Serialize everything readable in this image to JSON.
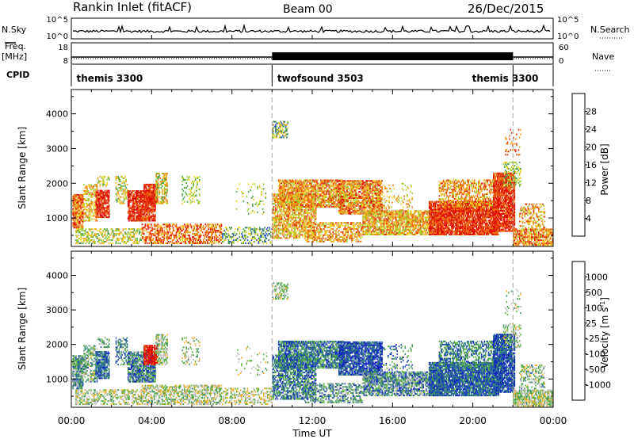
{
  "header": {
    "station": "Rankin Inlet (fitACF)",
    "beam": "Beam 00",
    "date": "26/Dec/2015"
  },
  "status_panel": {
    "left_label_top": "N.Sky",
    "left_label_freq_1": "Freq.",
    "left_label_freq_2": "[MHz]",
    "left_label_cpid": "CPID",
    "right_label_top": "N.Search",
    "right_label_nave": "Nave",
    "nsky_ticks": [
      "10^5",
      "10^0"
    ],
    "nsearch_ticks": [
      "10^5",
      "10^0"
    ],
    "freq_ticks": [
      "18",
      "8"
    ],
    "nave_ticks": [
      "60",
      "0"
    ],
    "cpid_segments": [
      {
        "label": "themis 3300",
        "start_hour": 0,
        "end_hour": 10
      },
      {
        "label": "twofsound 3503",
        "start_hour": 10,
        "end_hour": 22
      },
      {
        "label": "themis 3300",
        "start_hour": 22,
        "end_hour": 24
      }
    ],
    "cpid_label_positions_hour": [
      0.1,
      10.1,
      19.8
    ]
  },
  "chart_data": [
    {
      "type": "heatmap",
      "name": "power-panel",
      "ylabel": "Slant Range [km]",
      "xlabel": "",
      "xlim": [
        0,
        24
      ],
      "ylim": [
        180,
        4700
      ],
      "yticks": [
        1000,
        2000,
        3000,
        4000
      ],
      "colorbar": {
        "label": "Power [dB]",
        "ticks": [
          "4",
          "8",
          "12",
          "16",
          "20",
          "24",
          "28"
        ],
        "colors": [
          "#1010e0",
          "#2a4fd0",
          "#3a7a6a",
          "#4aa04a",
          "#9acc30",
          "#f0d020",
          "#f0a020",
          "#f07010",
          "#e03010",
          "#e00000"
        ]
      },
      "dashed_lines_hour": [
        10,
        22
      ]
    },
    {
      "type": "heatmap",
      "name": "velocity-panel",
      "ylabel": "Slant Range [km]",
      "xlabel": "Time UT",
      "xlim": [
        0,
        24
      ],
      "ylim": [
        180,
        4700
      ],
      "yticks": [
        1000,
        2000,
        3000,
        4000
      ],
      "xticks": [
        "00:00",
        "04:00",
        "08:00",
        "12:00",
        "16:00",
        "20:00",
        "00:00"
      ],
      "colorbar": {
        "label": "Velocity [m s-1]",
        "ticks": [
          "1000",
          "500",
          "100",
          "25",
          "-25",
          "-100",
          "-500",
          "-1000"
        ],
        "colors": [
          "#1020c0",
          "#2050b0",
          "#3a8a70",
          "#5ab040",
          "#c0c0c0",
          "#f0b020",
          "#f08020",
          "#f05010",
          "#e00000"
        ]
      },
      "dashed_lines_hour": [
        10,
        22
      ]
    }
  ],
  "regions": [
    {
      "t0": 0.05,
      "t1": 0.6,
      "r0": 700,
      "r1": 1700,
      "density": 0.85,
      "p": [
        0.55,
        0.95
      ],
      "v": [
        0.15,
        0.55
      ]
    },
    {
      "t0": 0.6,
      "t1": 1.3,
      "r0": 900,
      "r1": 2000,
      "density": 0.5,
      "p": [
        0.4,
        0.8
      ],
      "v": [
        0.2,
        0.6
      ]
    },
    {
      "t0": 1.2,
      "t1": 1.9,
      "r0": 1000,
      "r1": 1800,
      "density": 0.8,
      "p": [
        0.75,
        1.0
      ],
      "v": [
        0.05,
        0.35
      ]
    },
    {
      "t0": 1.3,
      "t1": 1.9,
      "r0": 1900,
      "r1": 2200,
      "density": 0.4,
      "p": [
        0.3,
        0.7
      ],
      "v": [
        0.2,
        0.5
      ]
    },
    {
      "t0": 2.2,
      "t1": 2.8,
      "r0": 1400,
      "r1": 2200,
      "density": 0.45,
      "p": [
        0.3,
        0.7
      ],
      "v": [
        0.1,
        0.4
      ]
    },
    {
      "t0": 2.8,
      "t1": 4.2,
      "r0": 900,
      "r1": 1800,
      "density": 0.85,
      "p": [
        0.7,
        1.0
      ],
      "v": [
        0.05,
        0.5
      ]
    },
    {
      "t0": 3.6,
      "t1": 4.3,
      "r0": 1400,
      "r1": 2000,
      "density": 0.9,
      "p": [
        0.7,
        1.0
      ],
      "v": [
        0.85,
        1.0
      ]
    },
    {
      "t0": 4.2,
      "t1": 4.8,
      "r0": 1400,
      "r1": 2300,
      "density": 0.6,
      "p": [
        0.3,
        0.8
      ],
      "v": [
        0.3,
        0.6
      ]
    },
    {
      "t0": 0.2,
      "t1": 3.5,
      "r0": 250,
      "r1": 700,
      "density": 0.45,
      "p": [
        0.3,
        0.7
      ],
      "v": [
        0.3,
        0.65
      ]
    },
    {
      "t0": 3.5,
      "t1": 7.5,
      "r0": 250,
      "r1": 850,
      "density": 0.55,
      "p": [
        0.55,
        0.95
      ],
      "v": [
        0.3,
        0.65
      ]
    },
    {
      "t0": 5.5,
      "t1": 6.4,
      "r0": 1400,
      "r1": 2200,
      "density": 0.25,
      "p": [
        0.3,
        0.6
      ],
      "v": [
        0.3,
        0.6
      ]
    },
    {
      "t0": 7.5,
      "t1": 10.0,
      "r0": 250,
      "r1": 750,
      "density": 0.4,
      "p": [
        0.1,
        0.6
      ],
      "v": [
        0.35,
        0.65
      ]
    },
    {
      "t0": 8.2,
      "t1": 9.8,
      "r0": 1100,
      "r1": 2000,
      "density": 0.07,
      "p": [
        0.3,
        0.6
      ],
      "v": [
        0.3,
        0.6
      ]
    },
    {
      "t0": 10.0,
      "t1": 10.8,
      "r0": 3300,
      "r1": 3800,
      "density": 0.5,
      "p": [
        0.1,
        0.7
      ],
      "v": [
        0.3,
        0.6
      ]
    },
    {
      "t0": 10.0,
      "t1": 12.2,
      "r0": 400,
      "r1": 1700,
      "density": 0.65,
      "p": [
        0.4,
        0.85
      ],
      "v": [
        0.05,
        0.45
      ]
    },
    {
      "t0": 10.3,
      "t1": 13.6,
      "r0": 1300,
      "r1": 2100,
      "density": 0.75,
      "p": [
        0.45,
        0.9
      ],
      "v": [
        0.05,
        0.45
      ]
    },
    {
      "t0": 13.3,
      "t1": 15.5,
      "r0": 1100,
      "r1": 2100,
      "density": 0.8,
      "p": [
        0.45,
        0.95
      ],
      "v": [
        0.0,
        0.3
      ]
    },
    {
      "t0": 11.6,
      "t1": 14.5,
      "r0": 300,
      "r1": 900,
      "density": 0.5,
      "p": [
        0.45,
        0.85
      ],
      "v": [
        0.1,
        0.55
      ]
    },
    {
      "t0": 14.5,
      "t1": 18.5,
      "r0": 500,
      "r1": 1200,
      "density": 0.75,
      "p": [
        0.4,
        0.85
      ],
      "v": [
        0.05,
        0.55
      ]
    },
    {
      "t0": 15.5,
      "t1": 17.0,
      "r0": 1200,
      "r1": 2000,
      "density": 0.15,
      "p": [
        0.4,
        0.8
      ],
      "v": [
        0.05,
        0.45
      ]
    },
    {
      "t0": 17.8,
      "t1": 21.3,
      "r0": 500,
      "r1": 1500,
      "density": 0.9,
      "p": [
        0.7,
        1.0
      ],
      "v": [
        0.05,
        0.35
      ]
    },
    {
      "t0": 18.3,
      "t1": 21.5,
      "r0": 1300,
      "r1": 2100,
      "density": 0.55,
      "p": [
        0.45,
        0.9
      ],
      "v": [
        0.1,
        0.45
      ]
    },
    {
      "t0": 21.0,
      "t1": 22.1,
      "r0": 600,
      "r1": 2300,
      "density": 0.85,
      "p": [
        0.7,
        1.0
      ],
      "v": [
        0.0,
        0.3
      ]
    },
    {
      "t0": 22.0,
      "t1": 24.0,
      "r0": 200,
      "r1": 700,
      "density": 0.75,
      "p": [
        0.45,
        0.95
      ],
      "v": [
        0.3,
        0.65
      ]
    },
    {
      "t0": 22.3,
      "t1": 23.6,
      "r0": 700,
      "r1": 1400,
      "density": 0.35,
      "p": [
        0.4,
        0.9
      ],
      "v": [
        0.2,
        0.6
      ]
    },
    {
      "t0": 21.5,
      "t1": 22.4,
      "r0": 1900,
      "r1": 2600,
      "density": 0.35,
      "p": [
        0.3,
        0.6
      ],
      "v": [
        0.3,
        0.6
      ]
    },
    {
      "t0": 21.6,
      "t1": 22.4,
      "r0": 2800,
      "r1": 3600,
      "density": 0.12,
      "p": [
        0.6,
        0.9
      ],
      "v": [
        0.3,
        0.6
      ]
    }
  ]
}
